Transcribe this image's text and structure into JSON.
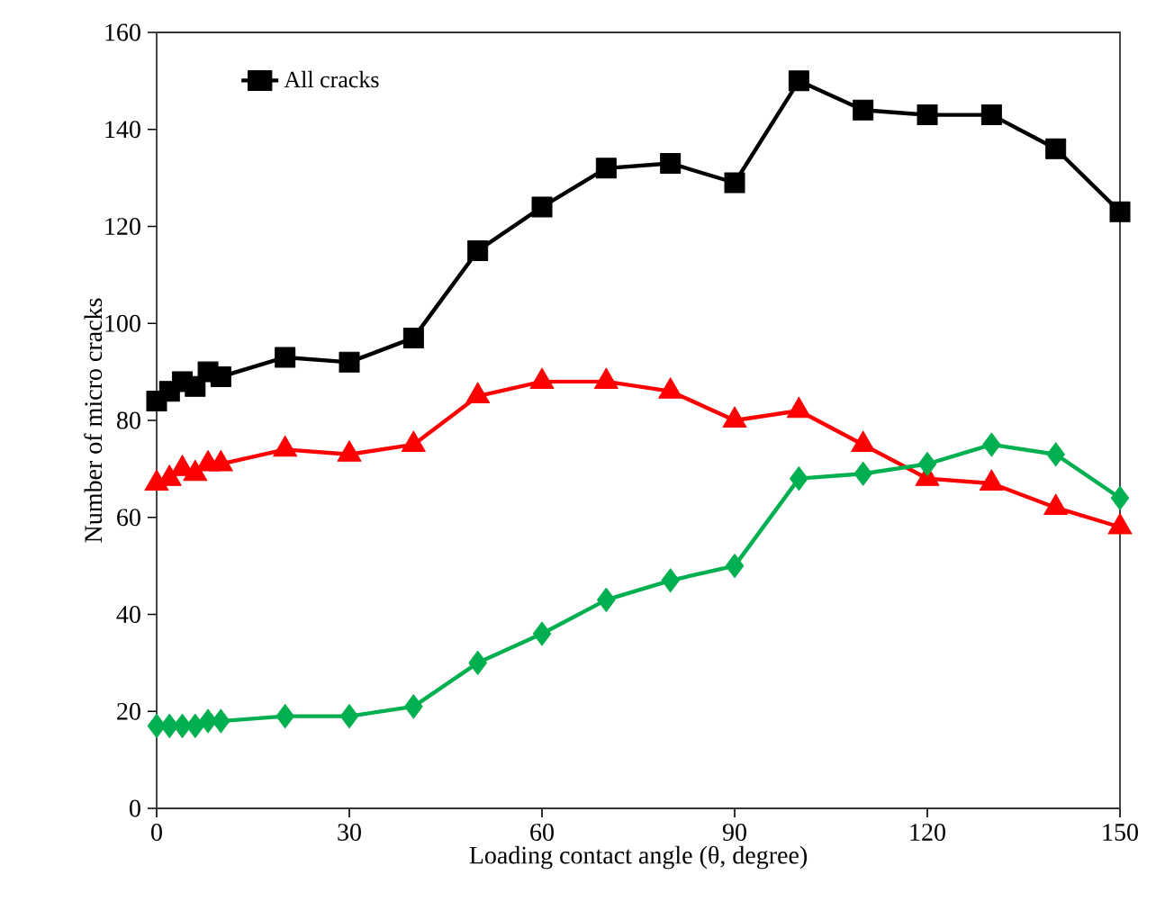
{
  "chart_data": {
    "type": "line",
    "xlabel": "Loading contact angle (θ, degree)",
    "ylabel": "Number of  micro cracks",
    "x": [
      0,
      2,
      4,
      6,
      8,
      10,
      20,
      30,
      40,
      50,
      60,
      70,
      80,
      90,
      100,
      110,
      120,
      130,
      140,
      150
    ],
    "series": [
      {
        "name": "All cracks",
        "color": "#000000",
        "marker": "square",
        "values": [
          84,
          86,
          88,
          87,
          90,
          89,
          93,
          92,
          97,
          115,
          124,
          132,
          133,
          129,
          150,
          144,
          143,
          143,
          136,
          123
        ]
      },
      {
        "color": "#ff0000",
        "marker": "triangle",
        "values": [
          67,
          68,
          70,
          69,
          71,
          71,
          74,
          73,
          75,
          85,
          88,
          88,
          86,
          80,
          82,
          75,
          68,
          67,
          62,
          58
        ]
      },
      {
        "color": "#00b050",
        "marker": "diamond",
        "values": [
          17,
          17,
          17,
          17,
          18,
          18,
          19,
          19,
          21,
          30,
          36,
          43,
          47,
          50,
          68,
          69,
          71,
          75,
          73,
          64
        ]
      }
    ],
    "xlim": [
      0,
      150
    ],
    "ylim": [
      0,
      160
    ],
    "xticks": [
      0,
      30,
      60,
      90,
      120,
      150
    ],
    "yticks": [
      0,
      20,
      40,
      60,
      80,
      100,
      120,
      140,
      160
    ],
    "grid": false,
    "legend": "top left",
    "line_style": "solid"
  }
}
